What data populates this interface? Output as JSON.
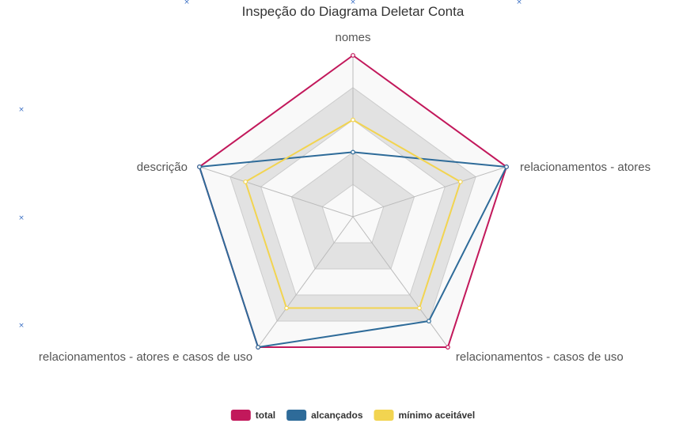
{
  "chart_data": {
    "type": "radar",
    "title": "Inspeção do Diagrama Deletar Conta",
    "axes": [
      "nomes",
      "relacionamentos - atores",
      "relacionamentos - casos de uso",
      "relacionamentos - atores e casos de uso",
      "descrição"
    ],
    "rlim": [
      0,
      5
    ],
    "rings": 5,
    "grid": true,
    "legend_position": "bottom",
    "series": [
      {
        "name": "total",
        "color": "#c2185b",
        "values": [
          5,
          5,
          5,
          5,
          5
        ]
      },
      {
        "name": "alcançados",
        "color": "#2e6b99",
        "values": [
          2,
          5,
          4,
          5,
          5
        ]
      },
      {
        "name": "mínimo aceitável",
        "color": "#f2d450",
        "values": [
          3,
          3.5,
          3.5,
          3.5,
          3.5
        ]
      }
    ]
  },
  "decorations": {
    "stray_mark_glyph": "×"
  }
}
